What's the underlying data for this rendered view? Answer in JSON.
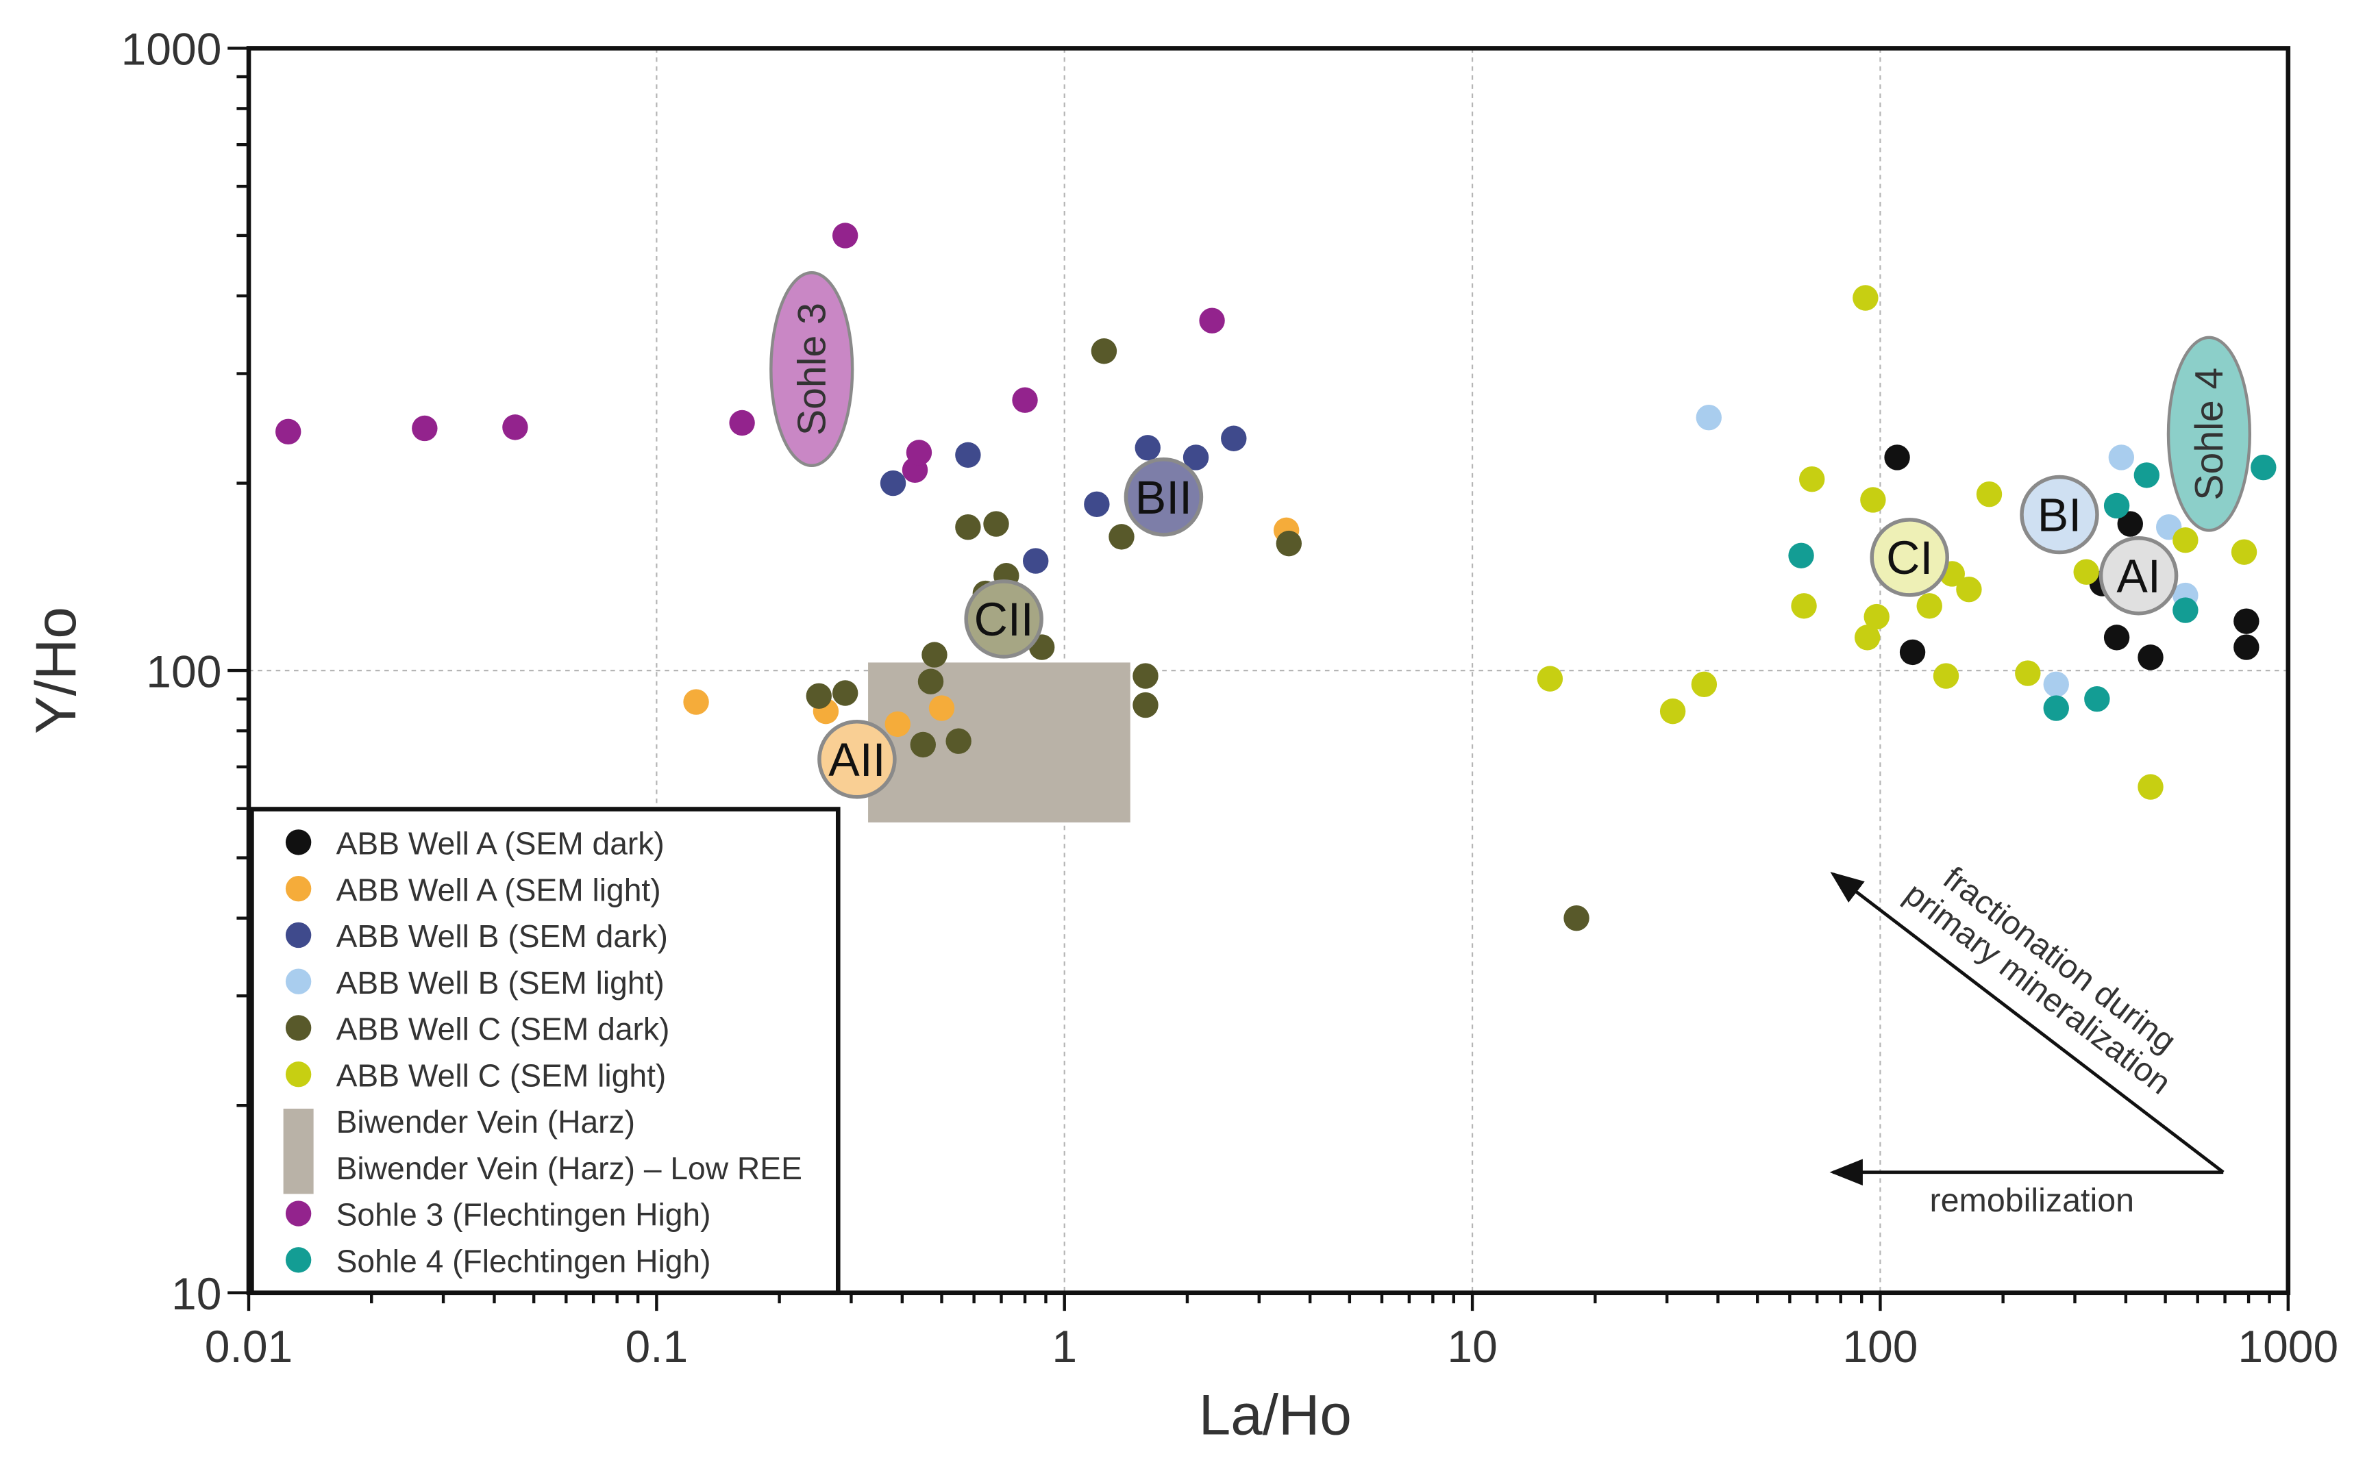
{
  "chart_data": {
    "type": "scatter",
    "title": "",
    "xlabel": "La/Ho",
    "ylabel": "Y/Ho",
    "xscale": "log",
    "yscale": "log",
    "xlim": [
      0.01,
      1000
    ],
    "ylim": [
      10,
      1000
    ],
    "x_ticks": [
      {
        "value": 0.01,
        "label": "0.01"
      },
      {
        "value": 0.1,
        "label": "0.1"
      },
      {
        "value": 1,
        "label": "1"
      },
      {
        "value": 10,
        "label": "10"
      },
      {
        "value": 100,
        "label": "100"
      },
      {
        "value": 1000,
        "label": "1000"
      }
    ],
    "y_ticks": [
      {
        "value": 10,
        "label": "10"
      },
      {
        "value": 100,
        "label": "100"
      },
      {
        "value": 1000,
        "label": "1000"
      }
    ],
    "grid": "dotted at major decades",
    "legend_position": "bottom-left",
    "series": [
      {
        "name": "ABB Well A (SEM dark)",
        "color": "#111111",
        "points": [
          [
            110,
            220
          ],
          [
            120,
            107
          ],
          [
            350,
            138
          ],
          [
            380,
            113
          ],
          [
            410,
            172
          ],
          [
            460,
            105
          ],
          [
            790,
            120
          ],
          [
            790,
            109
          ]
        ]
      },
      {
        "name": "ABB Well A (SEM light)",
        "color": "#f5ac3a",
        "points": [
          [
            0.125,
            89
          ],
          [
            0.26,
            86
          ],
          [
            0.39,
            82
          ],
          [
            0.5,
            87
          ],
          [
            3.5,
            168
          ]
        ]
      },
      {
        "name": "ABB Well B (SEM dark)",
        "color": "#3f4a8c",
        "points": [
          [
            0.38,
            200
          ],
          [
            0.58,
            222
          ],
          [
            0.85,
            150
          ],
          [
            1.2,
            185
          ],
          [
            1.6,
            228
          ],
          [
            2.1,
            220
          ],
          [
            2.6,
            236
          ]
        ]
      },
      {
        "name": "ABB Well B (SEM light)",
        "color": "#a9cdee",
        "points": [
          [
            38,
            255
          ],
          [
            270,
            95
          ],
          [
            390,
            220
          ],
          [
            510,
            170
          ],
          [
            560,
            132
          ]
        ]
      },
      {
        "name": "ABB Well C (SEM dark)",
        "color": "#58592a",
        "points": [
          [
            0.25,
            91
          ],
          [
            0.29,
            92
          ],
          [
            0.45,
            76
          ],
          [
            0.47,
            96
          ],
          [
            0.48,
            106
          ],
          [
            0.55,
            77
          ],
          [
            0.58,
            170
          ],
          [
            0.64,
            133
          ],
          [
            0.68,
            172
          ],
          [
            0.72,
            142
          ],
          [
            0.88,
            109
          ],
          [
            1.25,
            326
          ],
          [
            1.38,
            164
          ],
          [
            1.58,
            98
          ],
          [
            1.58,
            88
          ],
          [
            3.55,
            160
          ],
          [
            18,
            40
          ]
        ]
      },
      {
        "name": "ABB Well C (SEM light)",
        "color": "#c7cf12",
        "points": [
          [
            15.5,
            97
          ],
          [
            31,
            86
          ],
          [
            37,
            95
          ],
          [
            65,
            127
          ],
          [
            68,
            203
          ],
          [
            92,
            397
          ],
          [
            93,
            113
          ],
          [
            96,
            188
          ],
          [
            98,
            122
          ],
          [
            132,
            127
          ],
          [
            145,
            98
          ],
          [
            150,
            143
          ],
          [
            165,
            135
          ],
          [
            185,
            192
          ],
          [
            230,
            99
          ],
          [
            320,
            144
          ],
          [
            460,
            65
          ],
          [
            560,
            162
          ],
          [
            780,
            155
          ]
        ]
      },
      {
        "name": "Sohle 3 (Flechtingen High)",
        "color": "#93238d",
        "points": [
          [
            0.0125,
            242
          ],
          [
            0.027,
            245
          ],
          [
            0.045,
            246
          ],
          [
            0.162,
            250
          ],
          [
            0.29,
            500
          ],
          [
            0.43,
            210
          ],
          [
            0.44,
            224
          ],
          [
            0.8,
            272
          ],
          [
            2.3,
            365
          ]
        ]
      },
      {
        "name": "Sohle 4 (Flechtingen High)",
        "color": "#139d94",
        "points": [
          [
            64,
            153
          ],
          [
            270,
            87
          ],
          [
            340,
            90
          ],
          [
            380,
            184
          ],
          [
            450,
            206
          ],
          [
            560,
            125
          ],
          [
            870,
            212
          ]
        ]
      }
    ],
    "rect_series": {
      "name": "Biwender Vein (Harz)",
      "note": "Biwender Vein (Harz) – Low REE",
      "color": "#b9b2a7",
      "x_range": [
        0.33,
        1.45
      ],
      "y_range": [
        57,
        103
      ]
    },
    "legend": [
      {
        "label": "ABB Well A (SEM dark)",
        "color": "#111111",
        "marker": "circle"
      },
      {
        "label": "ABB Well A (SEM light)",
        "color": "#f5ac3a",
        "marker": "circle"
      },
      {
        "label": "ABB Well B (SEM dark)",
        "color": "#3f4a8c",
        "marker": "circle"
      },
      {
        "label": "ABB Well B (SEM light)",
        "color": "#a9cdee",
        "marker": "circle"
      },
      {
        "label": "ABB Well C (SEM dark)",
        "color": "#58592a",
        "marker": "circle"
      },
      {
        "label": "ABB Well C (SEM light)",
        "color": "#c7cf12",
        "marker": "circle"
      },
      {
        "label": "Biwender Vein (Harz)",
        "color": "#b9b2a7",
        "marker": "rect"
      },
      {
        "label": "Biwender Vein (Harz) – Low REE",
        "color": "#b9b2a7",
        "marker": "none"
      },
      {
        "label": "Sohle 3 (Flechtingen High)",
        "color": "#93238d",
        "marker": "circle"
      },
      {
        "label": "Sohle 4 (Flechtingen High)",
        "color": "#139d94",
        "marker": "circle"
      }
    ],
    "group_labels": [
      {
        "label": "AI",
        "x": 430,
        "y": 142,
        "fill": "#e0e0e0"
      },
      {
        "label": "AII",
        "x": 0.31,
        "y": 72,
        "fill": "#f9cf94"
      },
      {
        "label": "BI",
        "x": 275,
        "y": 178,
        "fill": "#cfe0f2"
      },
      {
        "label": "BII",
        "x": 1.75,
        "y": 190,
        "fill": "#7d7ea8"
      },
      {
        "label": "CI",
        "x": 118,
        "y": 152,
        "fill": "#eef0b6"
      },
      {
        "label": "CII",
        "x": 0.71,
        "y": 121,
        "fill": "#a6a684"
      }
    ],
    "region_labels": [
      {
        "label": "Sohle 3",
        "x": 0.24,
        "y": 305,
        "fill": "#c987c5"
      },
      {
        "label": "Sohle 4",
        "x": 640,
        "y": 240,
        "fill": "#8ccfc9"
      }
    ],
    "annotations": {
      "diagonal_arrow": "fractionation during primary mineralization",
      "horizontal_arrow": "remobilization"
    }
  }
}
